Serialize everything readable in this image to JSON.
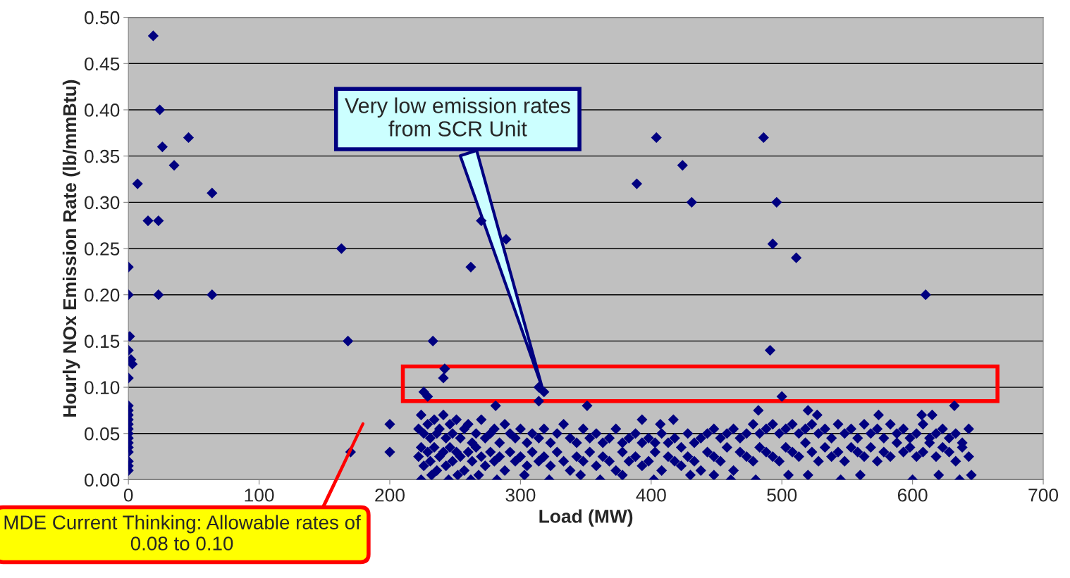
{
  "chart_data": {
    "type": "scatter",
    "xlabel": "Load (MW)",
    "ylabel": "Hourly NOx Emission Rate (lb/mmBtu)",
    "xlim": [
      0,
      700
    ],
    "xticks": [
      0,
      100,
      200,
      300,
      400,
      500,
      600,
      700
    ],
    "ylim": [
      0,
      0.5
    ],
    "yticks": [
      {
        "value": 0,
        "label": "0.00"
      },
      0.05,
      {
        "value": 0.1,
        "label": "0.10"
      },
      0.15,
      {
        "value": 0.2,
        "label": "0.20"
      },
      0.25,
      {
        "value": 0.3,
        "label": "0.30"
      },
      0.35,
      {
        "value": 0.4,
        "label": "0.40"
      },
      0.45,
      {
        "value": 0.5,
        "label": "0.50"
      }
    ],
    "grid": "y",
    "marker": "diamond",
    "legend": false,
    "series": [
      {
        "color": "#000080",
        "x": [
          19,
          24,
          26,
          35,
          46,
          7,
          15,
          23,
          23,
          64,
          64,
          0,
          0,
          1,
          0,
          2,
          3,
          0,
          0,
          0,
          0,
          0,
          0,
          0,
          0,
          0,
          0,
          0,
          0,
          0,
          0,
          0,
          163,
          168,
          170,
          200,
          200,
          233,
          242,
          241,
          262,
          270,
          289,
          314,
          318,
          314,
          226,
          229,
          281,
          351,
          389,
          404,
          424,
          431,
          486,
          496,
          493,
          511,
          491,
          500,
          482,
          610,
          632,
          520,
          607,
          615,
          574,
          527,
          393,
          407,
          417
        ],
        "values": [
          0.48,
          0.4,
          0.36,
          0.34,
          0.37,
          0.32,
          0.28,
          0.28,
          0.2,
          0.31,
          0.2,
          0.23,
          0.2,
          0.155,
          0.14,
          0.13,
          0.125,
          0.11,
          0.08,
          0.075,
          0.07,
          0.065,
          0.06,
          0.055,
          0.05,
          0.045,
          0.04,
          0.035,
          0.03,
          0.02,
          0.015,
          0.01,
          0.25,
          0.15,
          0.03,
          0.06,
          0.03,
          0.15,
          0.12,
          0.11,
          0.23,
          0.28,
          0.26,
          0.1,
          0.095,
          0.085,
          0.095,
          0.09,
          0.08,
          0.08,
          0.32,
          0.37,
          0.34,
          0.3,
          0.37,
          0.3,
          0.255,
          0.24,
          0.14,
          0.09,
          0.075,
          0.2,
          0.08,
          0.075,
          0.07,
          0.07,
          0.07,
          0.07,
          0.065,
          0.06,
          0.065
        ]
      },
      {
        "color": "#000080",
        "x": [
          222,
          224,
          226,
          229,
          231,
          234,
          236,
          238,
          241,
          243,
          246,
          248,
          251,
          254,
          257,
          260,
          263,
          266,
          270,
          273,
          277,
          280,
          284,
          288,
          292,
          296,
          300,
          305,
          309,
          314,
          318,
          323,
          328,
          333,
          338,
          343,
          348,
          353,
          358,
          363,
          368,
          373,
          378,
          383,
          388,
          393,
          398,
          403,
          408,
          413,
          418,
          423,
          428,
          433,
          438,
          443,
          448,
          453,
          458,
          463,
          468,
          473,
          478,
          483,
          488,
          493,
          498,
          503,
          508,
          513,
          518,
          523,
          528,
          533,
          538,
          543,
          548,
          553,
          558,
          563,
          568,
          573,
          578,
          583,
          588,
          593,
          598,
          603,
          608,
          613,
          618,
          623,
          628,
          633,
          638,
          643
        ],
        "values": [
          0.055,
          0.07,
          0.05,
          0.06,
          0.045,
          0.065,
          0.05,
          0.055,
          0.07,
          0.045,
          0.06,
          0.05,
          0.065,
          0.045,
          0.055,
          0.06,
          0.04,
          0.05,
          0.065,
          0.045,
          0.05,
          0.055,
          0.04,
          0.06,
          0.05,
          0.045,
          0.055,
          0.04,
          0.05,
          0.045,
          0.055,
          0.04,
          0.05,
          0.06,
          0.045,
          0.04,
          0.055,
          0.045,
          0.05,
          0.04,
          0.045,
          0.055,
          0.04,
          0.045,
          0.05,
          0.04,
          0.045,
          0.04,
          0.05,
          0.04,
          0.045,
          0.035,
          0.05,
          0.04,
          0.045,
          0.05,
          0.055,
          0.045,
          0.05,
          0.055,
          0.045,
          0.05,
          0.06,
          0.05,
          0.055,
          0.06,
          0.05,
          0.055,
          0.06,
          0.05,
          0.055,
          0.06,
          0.05,
          0.055,
          0.045,
          0.06,
          0.05,
          0.055,
          0.045,
          0.06,
          0.05,
          0.055,
          0.045,
          0.06,
          0.05,
          0.055,
          0.045,
          0.05,
          0.06,
          0.045,
          0.05,
          0.055,
          0.045,
          0.05,
          0.04,
          0.055
        ]
      },
      {
        "color": "#000080",
        "x": [
          222,
          224,
          226,
          229,
          231,
          234,
          236,
          238,
          241,
          243,
          246,
          248,
          251,
          254,
          257,
          260,
          263,
          266,
          270,
          273,
          277,
          280,
          284,
          288,
          292,
          296,
          300,
          305,
          309,
          314,
          318,
          323,
          328,
          333,
          338,
          343,
          348,
          353,
          358,
          363,
          368,
          373,
          378,
          383,
          388,
          393,
          398,
          403,
          408,
          413,
          418,
          423,
          428,
          433,
          438,
          443,
          448,
          453,
          458,
          463,
          468,
          473,
          478,
          483,
          488,
          493,
          498,
          503,
          508,
          513,
          518,
          523,
          528,
          533,
          538,
          543,
          548,
          553,
          558,
          563,
          568,
          573,
          578,
          583,
          588,
          593,
          598,
          603,
          608,
          613,
          618,
          623,
          628,
          633,
          638,
          643
        ],
        "values": [
          0.025,
          0.035,
          0.015,
          0.03,
          0.02,
          0.035,
          0.01,
          0.025,
          0.03,
          0.015,
          0.035,
          0.02,
          0.03,
          0.025,
          0.01,
          0.03,
          0.02,
          0.035,
          0.025,
          0.015,
          0.03,
          0.02,
          0.025,
          0.01,
          0.03,
          0.02,
          0.025,
          0.015,
          0.03,
          0.02,
          0.025,
          0.015,
          0.03,
          0.02,
          0.01,
          0.025,
          0.02,
          0.03,
          0.015,
          0.025,
          0.02,
          0.01,
          0.03,
          0.02,
          0.025,
          0.015,
          0.02,
          0.03,
          0.01,
          0.025,
          0.02,
          0.015,
          0.025,
          0.02,
          0.01,
          0.03,
          0.025,
          0.02,
          0.035,
          0.01,
          0.03,
          0.025,
          0.02,
          0.035,
          0.03,
          0.025,
          0.02,
          0.035,
          0.03,
          0.025,
          0.04,
          0.03,
          0.02,
          0.035,
          0.025,
          0.03,
          0.02,
          0.035,
          0.03,
          0.025,
          0.035,
          0.02,
          0.03,
          0.025,
          0.04,
          0.03,
          0.035,
          0.025,
          0.03,
          0.04,
          0.025,
          0.035,
          0.03,
          0.02,
          0.035,
          0.025
        ]
      },
      {
        "color": "#000080",
        "x": [
          224,
          232,
          245,
          252,
          262,
          268,
          282,
          303,
          322,
          346,
          361,
          378,
          402,
          430,
          448,
          461,
          480,
          505,
          520,
          545,
          560,
          600,
          620,
          636,
          645
        ],
        "values": [
          0.0,
          0.005,
          0.0,
          0.005,
          0.0,
          0.005,
          0.0,
          0.005,
          0.0,
          0.005,
          0.0,
          0.005,
          0.0,
          0.005,
          0.005,
          0.0,
          0.0,
          0.005,
          0.005,
          0.0,
          0.005,
          0.0,
          0.005,
          0.0,
          0.005
        ]
      }
    ],
    "annotations": [
      {
        "text": "Very low emission rates from SCR Unit",
        "x": 317,
        "y": 0.098
      },
      "MDE Current Thinking: Allowable rates of 0.08 to 0.10"
    ]
  }
}
